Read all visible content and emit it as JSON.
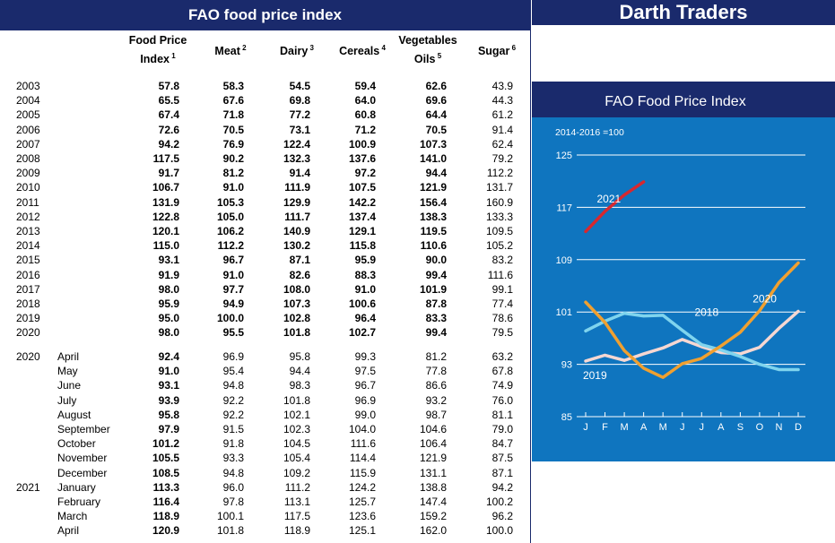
{
  "table": {
    "title": "FAO food price index",
    "headers": [
      {
        "line1": "Food Price",
        "line2": "Index",
        "sup": "1"
      },
      {
        "line1": "Meat",
        "line2": "",
        "sup": "2"
      },
      {
        "line1": "Dairy",
        "line2": "",
        "sup": "3"
      },
      {
        "line1": "Cereals",
        "line2": "",
        "sup": "4"
      },
      {
        "line1": "Vegetables",
        "line2": "Oils",
        "sup": "5"
      },
      {
        "line1": "Sugar",
        "line2": "",
        "sup": "6"
      }
    ],
    "annual": [
      {
        "year": "2003",
        "values": [
          "57.8",
          "58.3",
          "54.5",
          "59.4",
          "62.6",
          "43.9"
        ]
      },
      {
        "year": "2004",
        "values": [
          "65.5",
          "67.6",
          "69.8",
          "64.0",
          "69.6",
          "44.3"
        ]
      },
      {
        "year": "2005",
        "values": [
          "67.4",
          "71.8",
          "77.2",
          "60.8",
          "64.4",
          "61.2"
        ]
      },
      {
        "year": "2006",
        "values": [
          "72.6",
          "70.5",
          "73.1",
          "71.2",
          "70.5",
          "91.4"
        ]
      },
      {
        "year": "2007",
        "values": [
          "94.2",
          "76.9",
          "122.4",
          "100.9",
          "107.3",
          "62.4"
        ]
      },
      {
        "year": "2008",
        "values": [
          "117.5",
          "90.2",
          "132.3",
          "137.6",
          "141.0",
          "79.2"
        ]
      },
      {
        "year": "2009",
        "values": [
          "91.7",
          "81.2",
          "91.4",
          "97.2",
          "94.4",
          "112.2"
        ]
      },
      {
        "year": "2010",
        "values": [
          "106.7",
          "91.0",
          "111.9",
          "107.5",
          "121.9",
          "131.7"
        ]
      },
      {
        "year": "2011",
        "values": [
          "131.9",
          "105.3",
          "129.9",
          "142.2",
          "156.4",
          "160.9"
        ]
      },
      {
        "year": "2012",
        "values": [
          "122.8",
          "105.0",
          "111.7",
          "137.4",
          "138.3",
          "133.3"
        ]
      },
      {
        "year": "2013",
        "values": [
          "120.1",
          "106.2",
          "140.9",
          "129.1",
          "119.5",
          "109.5"
        ]
      },
      {
        "year": "2014",
        "values": [
          "115.0",
          "112.2",
          "130.2",
          "115.8",
          "110.6",
          "105.2"
        ]
      },
      {
        "year": "2015",
        "values": [
          "93.1",
          "96.7",
          "87.1",
          "95.9",
          "90.0",
          "83.2"
        ]
      },
      {
        "year": "2016",
        "values": [
          "91.9",
          "91.0",
          "82.6",
          "88.3",
          "99.4",
          "111.6"
        ]
      },
      {
        "year": "2017",
        "values": [
          "98.0",
          "97.7",
          "108.0",
          "91.0",
          "101.9",
          "99.1"
        ]
      },
      {
        "year": "2018",
        "values": [
          "95.9",
          "94.9",
          "107.3",
          "100.6",
          "87.8",
          "77.4"
        ]
      },
      {
        "year": "2019",
        "values": [
          "95.0",
          "100.0",
          "102.8",
          "96.4",
          "83.3",
          "78.6"
        ]
      },
      {
        "year": "2020",
        "values": [
          "98.0",
          "95.5",
          "101.8",
          "102.7",
          "99.4",
          "79.5"
        ]
      }
    ],
    "monthly": [
      {
        "year": "2020",
        "month": "April",
        "values": [
          "92.4",
          "96.9",
          "95.8",
          "99.3",
          "81.2",
          "63.2"
        ]
      },
      {
        "year": "",
        "month": "May",
        "values": [
          "91.0",
          "95.4",
          "94.4",
          "97.5",
          "77.8",
          "67.8"
        ]
      },
      {
        "year": "",
        "month": "June",
        "values": [
          "93.1",
          "94.8",
          "98.3",
          "96.7",
          "86.6",
          "74.9"
        ]
      },
      {
        "year": "",
        "month": "July",
        "values": [
          "93.9",
          "92.2",
          "101.8",
          "96.9",
          "93.2",
          "76.0"
        ]
      },
      {
        "year": "",
        "month": "August",
        "values": [
          "95.8",
          "92.2",
          "102.1",
          "99.0",
          "98.7",
          "81.1"
        ]
      },
      {
        "year": "",
        "month": "September",
        "values": [
          "97.9",
          "91.5",
          "102.3",
          "104.0",
          "104.6",
          "79.0"
        ]
      },
      {
        "year": "",
        "month": "October",
        "values": [
          "101.2",
          "91.8",
          "104.5",
          "111.6",
          "106.4",
          "84.7"
        ]
      },
      {
        "year": "",
        "month": "November",
        "values": [
          "105.5",
          "93.3",
          "105.4",
          "114.4",
          "121.9",
          "87.5"
        ]
      },
      {
        "year": "",
        "month": "December",
        "values": [
          "108.5",
          "94.8",
          "109.2",
          "115.9",
          "131.1",
          "87.1"
        ]
      },
      {
        "year": "2021",
        "month": "January",
        "values": [
          "113.3",
          "96.0",
          "111.2",
          "124.2",
          "138.8",
          "94.2"
        ]
      },
      {
        "year": "",
        "month": "February",
        "values": [
          "116.4",
          "97.8",
          "113.1",
          "125.7",
          "147.4",
          "100.2"
        ]
      },
      {
        "year": "",
        "month": "March",
        "values": [
          "118.9",
          "100.1",
          "117.5",
          "123.6",
          "159.2",
          "96.2"
        ]
      },
      {
        "year": "",
        "month": "April",
        "values": [
          "120.9",
          "101.8",
          "118.9",
          "125.1",
          "162.0",
          "100.0"
        ]
      }
    ]
  },
  "brand": {
    "name": "Darth Traders"
  },
  "chart_data": {
    "type": "line",
    "title": "FAO Food Price Index",
    "subtitle": "2014-2016 =100",
    "categories": [
      "J",
      "F",
      "M",
      "A",
      "M",
      "J",
      "J",
      "A",
      "S",
      "O",
      "N",
      "D"
    ],
    "ylim": [
      85,
      125
    ],
    "yticks": [
      85,
      93,
      101,
      109,
      117,
      125
    ],
    "grid": true,
    "series": [
      {
        "name": "2021",
        "color": "#d7282f",
        "values": [
          113.3,
          116.4,
          118.9,
          120.9,
          null,
          null,
          null,
          null,
          null,
          null,
          null,
          null
        ]
      },
      {
        "name": "2020",
        "color": "#f0a030",
        "values": [
          102.5,
          99.4,
          95.1,
          92.4,
          91.0,
          93.1,
          93.9,
          95.8,
          97.9,
          101.2,
          105.5,
          108.5
        ]
      },
      {
        "name": "2018",
        "color": "#7fd4ee",
        "values": [
          98.1,
          99.6,
          100.8,
          100.4,
          100.5,
          98.2,
          96.0,
          95.2,
          94.2,
          93.0,
          92.2,
          92.2
        ]
      },
      {
        "name": "2019",
        "color": "#f6d7d2",
        "values": [
          93.5,
          94.4,
          93.6,
          94.6,
          95.5,
          96.8,
          95.7,
          94.8,
          94.6,
          95.6,
          98.5,
          101.1
        ]
      }
    ],
    "series_labels": [
      "2021",
      "2020",
      "2018",
      "2019"
    ]
  }
}
